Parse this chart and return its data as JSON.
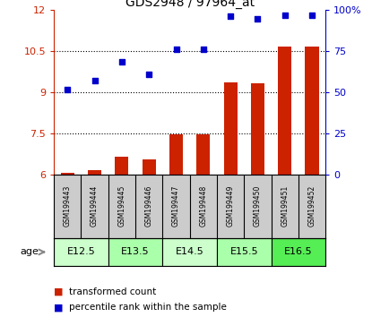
{
  "title": "GDS2948 / 97964_at",
  "samples": [
    "GSM199443",
    "GSM199444",
    "GSM199445",
    "GSM199446",
    "GSM199447",
    "GSM199448",
    "GSM199449",
    "GSM199450",
    "GSM199451",
    "GSM199452"
  ],
  "bar_values": [
    6.05,
    6.15,
    6.65,
    6.55,
    7.45,
    7.45,
    9.35,
    9.3,
    10.65,
    10.65
  ],
  "scatter_values": [
    9.1,
    9.4,
    10.1,
    9.65,
    10.55,
    10.55,
    11.75,
    11.65,
    11.8,
    11.8
  ],
  "bar_color": "#cc2200",
  "scatter_color": "#0000cc",
  "ylim_left": [
    6,
    12
  ],
  "ylim_right": [
    0,
    100
  ],
  "yticks_left": [
    6,
    7.5,
    9,
    10.5,
    12
  ],
  "yticks_right": [
    0,
    25,
    50,
    75,
    100
  ],
  "age_groups": [
    {
      "label": "E12.5",
      "start": 0,
      "end": 2,
      "color": "#ccffcc"
    },
    {
      "label": "E13.5",
      "start": 2,
      "end": 4,
      "color": "#aaffaa"
    },
    {
      "label": "E14.5",
      "start": 4,
      "end": 6,
      "color": "#ccffcc"
    },
    {
      "label": "E15.5",
      "start": 6,
      "end": 8,
      "color": "#aaffaa"
    },
    {
      "label": "E16.5",
      "start": 8,
      "end": 10,
      "color": "#55ee55"
    }
  ],
  "legend_bar_label": "transformed count",
  "legend_scatter_label": "percentile rank within the sample",
  "age_label": "age",
  "sample_bg": "#cccccc",
  "background_color": "#ffffff"
}
